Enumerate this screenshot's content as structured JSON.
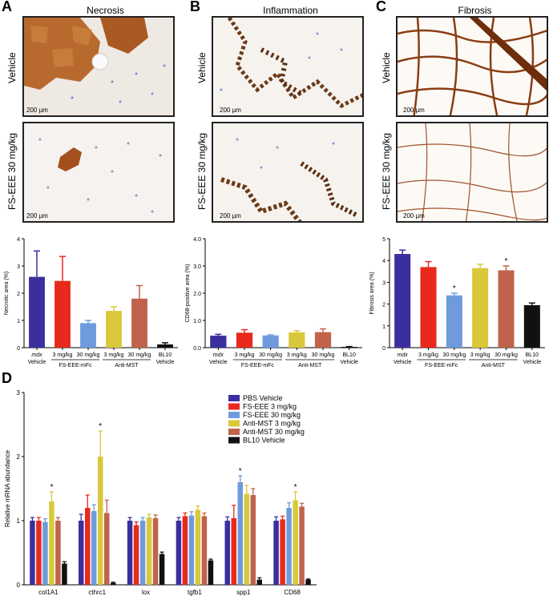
{
  "panels": [
    {
      "letter": "A",
      "title": "Necrosis"
    },
    {
      "letter": "B",
      "title": "Inflammation"
    },
    {
      "letter": "C",
      "title": "Fibrosis"
    }
  ],
  "image_rows": [
    "Vehicle",
    "FS-EEE 30 mg/kg"
  ],
  "scale_label": "200 µm",
  "panel_d_letter": "D",
  "colors": {
    "pbs": "#3b2fa0",
    "fs3": "#e8291c",
    "fs30": "#6f9bdc",
    "mst3": "#d9c83a",
    "mst30": "#c0634a",
    "bl10": "#111111",
    "necrosis": "#b0622a",
    "inflam": "#6b3a18",
    "fibrosis": "#8a3d12"
  },
  "chart_data": [
    {
      "type": "bar",
      "panel": "A",
      "ylabel": "Necrotic area (%)",
      "ylim": [
        0,
        4
      ],
      "yticks": [
        "0",
        "1",
        "2",
        "3",
        "4"
      ],
      "categories": [
        "mdx Vehicle",
        "3 mg/kg",
        "30 mg/kg",
        "3 mg/kg",
        "30 mg/kg",
        "BL10 Vehicle"
      ],
      "tick_labels": [
        [
          "mdx",
          "Vehicle"
        ],
        [
          "3 mg/kg"
        ],
        [
          "30 mg/kg"
        ],
        [
          "3 mg/kg"
        ],
        [
          "30 mg/kg"
        ],
        [
          "BL10",
          "Vehicle"
        ]
      ],
      "groups": [
        {
          "label": "FS-EEE-mFc",
          "from": 1,
          "to": 2
        },
        {
          "label": "Anti-MST",
          "from": 3,
          "to": 4
        }
      ],
      "values": [
        2.6,
        2.45,
        0.9,
        1.35,
        1.8,
        0.12
      ],
      "errors": [
        0.95,
        0.9,
        0.1,
        0.15,
        0.48,
        0.06
      ],
      "significant": [
        false,
        false,
        false,
        false,
        false,
        false
      ]
    },
    {
      "type": "bar",
      "panel": "B",
      "ylabel": "CD68-positive area (%)",
      "ylim": [
        0,
        4
      ],
      "yticks": [
        "0.0",
        "1.0",
        "2.0",
        "3.0",
        "4.0"
      ],
      "categories": [
        "mdx Vehicle",
        "3 mg/kg",
        "30 mg/kg",
        "3 mg/kg",
        "30 mg/kg",
        "BL10 Vehicle"
      ],
      "tick_labels": [
        [
          "mdx",
          "Vehicle"
        ],
        [
          "3 mg/kg"
        ],
        [
          "30 mg/kg"
        ],
        [
          "3 mg/kg"
        ],
        [
          "30 mg/kg"
        ],
        [
          "BL10",
          "Vehicle"
        ]
      ],
      "groups": [
        {
          "label": "FS-EEE-mFc",
          "from": 1,
          "to": 2
        },
        {
          "label": "Anti-MST",
          "from": 3,
          "to": 4
        }
      ],
      "values": [
        0.44,
        0.55,
        0.45,
        0.56,
        0.57,
        0.03
      ],
      "errors": [
        0.05,
        0.11,
        0.02,
        0.06,
        0.12,
        0.01
      ],
      "significant": [
        false,
        false,
        false,
        false,
        false,
        false
      ]
    },
    {
      "type": "bar",
      "panel": "C",
      "ylabel": "Fibrosis area (%)",
      "ylim": [
        0,
        5
      ],
      "yticks": [
        "0",
        "1",
        "2",
        "3",
        "4",
        "5"
      ],
      "categories": [
        "mdx Vehicle",
        "3 mg/kg",
        "30 mg/kg",
        "3 mg/kg",
        "30 mg/kg",
        "BL10 Vehicle"
      ],
      "tick_labels": [
        [
          "mdx",
          "Vehicle"
        ],
        [
          "3 mg/kg"
        ],
        [
          "30 mg/kg"
        ],
        [
          "3 mg/kg"
        ],
        [
          "30 mg/kg"
        ],
        [
          "BL10",
          "Vehicle"
        ]
      ],
      "groups": [
        {
          "label": "FS-EEE-mFc",
          "from": 1,
          "to": 2
        },
        {
          "label": "Anti-MST",
          "from": 3,
          "to": 4
        }
      ],
      "values": [
        4.3,
        3.7,
        2.4,
        3.65,
        3.55,
        1.95
      ],
      "errors": [
        0.18,
        0.25,
        0.1,
        0.18,
        0.2,
        0.1
      ],
      "significant": [
        false,
        false,
        true,
        false,
        true,
        false
      ]
    },
    {
      "type": "bar",
      "panel": "D",
      "ylabel": "Relative mRNA abundance",
      "ylim": [
        0,
        3
      ],
      "yticks": [
        "0",
        "1",
        "2",
        "3"
      ],
      "categories": [
        "col1A1",
        "cthrc1",
        "lox",
        "tgfb1",
        "spp1",
        "CD68"
      ],
      "series": [
        {
          "name": "PBS Vehicle",
          "color": "#3b2fa0",
          "values": [
            1.0,
            1.0,
            1.0,
            1.0,
            1.0,
            1.0
          ],
          "errors": [
            0.05,
            0.1,
            0.05,
            0.05,
            0.06,
            0.06
          ]
        },
        {
          "name": "FS-EEE 3 mg/kg",
          "color": "#e8291c",
          "values": [
            1.0,
            1.2,
            0.93,
            1.07,
            1.04,
            1.02
          ],
          "errors": [
            0.05,
            0.2,
            0.05,
            0.05,
            0.2,
            0.05
          ]
        },
        {
          "name": "FS-EEE 30 mg/kg",
          "color": "#6f9bdc",
          "values": [
            0.98,
            1.15,
            1.0,
            1.08,
            1.6,
            1.2
          ],
          "errors": [
            0.05,
            0.1,
            0.05,
            0.06,
            0.1,
            0.08
          ]
        },
        {
          "name": "Anti-MST 3 mg/kg",
          "color": "#d9c83a",
          "values": [
            1.3,
            2.0,
            1.05,
            1.17,
            1.42,
            1.32
          ],
          "errors": [
            0.15,
            0.4,
            0.05,
            0.06,
            0.13,
            0.13
          ]
        },
        {
          "name": "Anti-MST 30 mg/kg",
          "color": "#c0634a",
          "values": [
            1.0,
            1.12,
            1.04,
            1.07,
            1.4,
            1.22
          ],
          "errors": [
            0.05,
            0.2,
            0.05,
            0.05,
            0.1,
            0.05
          ]
        },
        {
          "name": "BL10 Vehicle",
          "color": "#111111",
          "values": [
            0.33,
            0.03,
            0.48,
            0.38,
            0.08,
            0.08
          ],
          "errors": [
            0.03,
            0.01,
            0.03,
            0.02,
            0.03,
            0.01
          ]
        }
      ],
      "significant": [
        [
          3,
          0
        ],
        [
          3,
          1
        ],
        [
          2,
          4
        ],
        [
          3,
          5
        ]
      ],
      "legend_placement": "top-center"
    }
  ]
}
